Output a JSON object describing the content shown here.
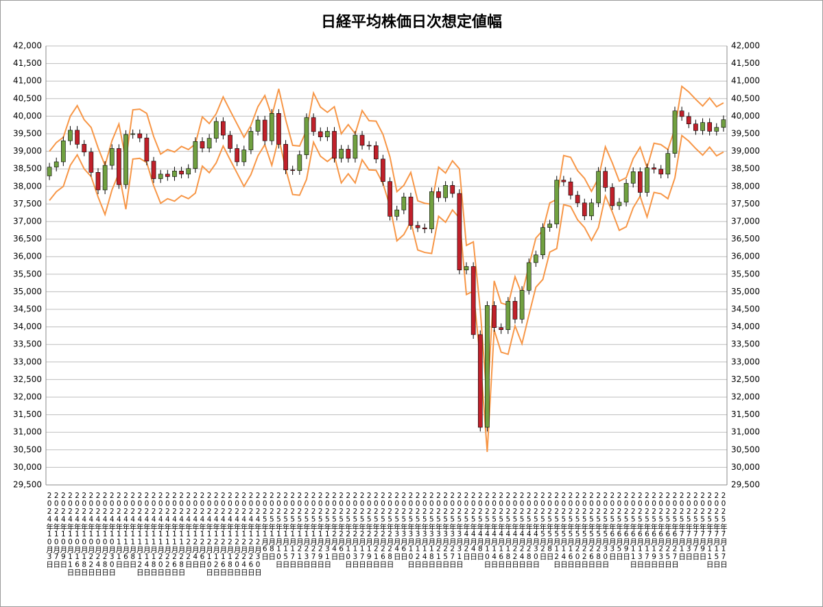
{
  "chart_data": {
    "type": "candlestick",
    "title": "日経平均株価日次想定値幅",
    "categories": [
      "2024年10月3日",
      "2024年10月7日",
      "2024年10月9日",
      "2024年10月11日",
      "2024年10月16日",
      "2024年10月18日",
      "2024年10月22日",
      "2024年10月24日",
      "2024年10月28日",
      "2024年10月30日",
      "2024年11月1日",
      "2024年11月6日",
      "2024年11月8日",
      "2024年11月12日",
      "2024年11月14日",
      "2024年11月18日",
      "2024年11月20日",
      "2024年11月22日",
      "2024年11月26日",
      "2024年11月28日",
      "2024年12月2日",
      "2024年12月4日",
      "2024年12月6日",
      "2024年12月10日",
      "2024年12月12日",
      "2024年12月16日",
      "2024年12月18日",
      "2024年12月20日",
      "2024年12月24日",
      "2024年12月26日",
      "2024年12月30日",
      "2025年1月6日",
      "2025年1月8日",
      "2025年1月10日",
      "2025年1月15日",
      "2025年1月17日",
      "2025年1月21日",
      "2025年1月23日",
      "2025年1月27日",
      "2025年1月29日",
      "2025年1月31日",
      "2025年2月4日",
      "2025年2月6日",
      "2025年2月10日",
      "2025年2月13日",
      "2025年2月17日",
      "2025年2月19日",
      "2025年2月21日",
      "2025年2月26日",
      "2025年2月28日",
      "2025年3月4日",
      "2025年3月6日",
      "2025年3月10日",
      "2025年3月12日",
      "2025年3月14日",
      "2025年3月18日",
      "2025年3月21日",
      "2025年3月25日",
      "2025年3月27日",
      "2025年3月31日",
      "2025年4月2日",
      "2025年4月4日",
      "2025年4月8日",
      "2025年4月10日",
      "2025年4月14日",
      "2025年4月16日",
      "2025年4月18日",
      "2025年4月22日",
      "2025年4月24日",
      "2025年4月28日",
      "2025年4月30日",
      "2025年5月2日",
      "2025年5月8日",
      "2025年5月12日",
      "2025年5月14日",
      "2025年5月16日",
      "2025年5月20日",
      "2025年5月22日",
      "2025年5月26日",
      "2025年5月28日",
      "2025年5月30日",
      "2025年6月3日",
      "2025年6月5日",
      "2025年6月9日",
      "2025年6月11日",
      "2025年6月13日",
      "2025年6月17日",
      "2025年6月19日",
      "2025年6月23日",
      "2025年6月25日",
      "2025年6月27日",
      "2025年7月1日",
      "2025年7月3日",
      "2025年7月7日",
      "2025年7月9日",
      "2025年7月11日",
      "2025年7月15日",
      "2025年7月17日"
    ],
    "open": [
      38300,
      38550,
      38700,
      39300,
      39600,
      39200,
      38980,
      38400,
      37900,
      38600,
      39080,
      38050,
      39480,
      39500,
      39380,
      38720,
      38220,
      38350,
      38280,
      38440,
      38350,
      38510,
      39280,
      39090,
      39370,
      39850,
      39460,
      39080,
      38700,
      39040,
      39570,
      39890,
      39300,
      40080,
      39200,
      38470,
      38450,
      38900,
      39960,
      39560,
      39410,
      39570,
      38800,
      39060,
      38800,
      39460,
      39170,
      39160,
      38780,
      38140,
      37150,
      37330,
      37700,
      36890,
      36820,
      36790,
      37850,
      37680,
      38030,
      37800,
      35620,
      35720,
      33780,
      31140,
      34610,
      33980,
      33920,
      34730,
      34220,
      35040,
      35830,
      36050,
      36830,
      36930,
      38180,
      38130,
      37750,
      37530,
      37160,
      37530,
      38430,
      37970,
      37450,
      37550,
      38090,
      38420,
      37830,
      38530,
      38490,
      38350,
      38940,
      40150,
      39990,
      39780,
      39590,
      39820,
      39570,
      39680
    ],
    "high": [
      38670,
      38820,
      39420,
      39720,
      39720,
      39320,
      39100,
      38520,
      38720,
      39200,
      39200,
      39600,
      39620,
      39620,
      39500,
      38840,
      38470,
      38470,
      38560,
      38560,
      38630,
      39400,
      39400,
      39490,
      39970,
      39970,
      39580,
      39200,
      39160,
      39690,
      40010,
      40010,
      40200,
      40200,
      39320,
      38590,
      39020,
      40080,
      40080,
      39680,
      39690,
      39690,
      39180,
      39180,
      39580,
      39580,
      39290,
      39280,
      38900,
      38260,
      37450,
      37820,
      37820,
      37010,
      36940,
      37970,
      37970,
      38150,
      38150,
      37920,
      35840,
      35840,
      33900,
      34730,
      34730,
      34100,
      34850,
      34850,
      35160,
      35950,
      36170,
      36950,
      37050,
      38300,
      38300,
      38250,
      37870,
      37650,
      37650,
      38550,
      38550,
      38090,
      37670,
      38210,
      38540,
      38540,
      38650,
      38650,
      38610,
      39060,
      40270,
      40270,
      40110,
      39900,
      39940,
      39940,
      39800,
      40020
    ],
    "low": [
      38180,
      38430,
      38580,
      39180,
      39080,
      38860,
      38280,
      37780,
      37780,
      38480,
      37930,
      37930,
      39360,
      39260,
      38600,
      38100,
      38100,
      38160,
      38160,
      38230,
      38230,
      38390,
      38970,
      38970,
      39250,
      39340,
      38960,
      38580,
      38580,
      38920,
      39450,
      39180,
      39180,
      39080,
      38350,
      38330,
      38330,
      38780,
      39440,
      39290,
      39290,
      38680,
      38680,
      38680,
      38680,
      39050,
      39040,
      38660,
      38020,
      37030,
      37030,
      37210,
      36770,
      36700,
      36670,
      36670,
      37560,
      37560,
      37680,
      35500,
      35500,
      33660,
      31020,
      31020,
      33860,
      33800,
      33800,
      34100,
      34100,
      34920,
      35710,
      35930,
      36710,
      36810,
      38010,
      37630,
      37410,
      37040,
      37040,
      37410,
      37850,
      37330,
      37330,
      37430,
      37970,
      37710,
      37710,
      38370,
      38230,
      38230,
      38820,
      39870,
      39660,
      39470,
      39470,
      39450,
      39450,
      39560
    ],
    "close": [
      38550,
      38700,
      39300,
      39600,
      39200,
      38980,
      38400,
      37900,
      38600,
      39080,
      38050,
      39480,
      39500,
      39380,
      38720,
      38220,
      38350,
      38280,
      38440,
      38350,
      38510,
      39280,
      39090,
      39370,
      39850,
      39460,
      39080,
      38700,
      39040,
      39570,
      39890,
      39300,
      40080,
      39200,
      38470,
      38450,
      38900,
      39960,
      39560,
      39410,
      39570,
      38800,
      39060,
      38800,
      39460,
      39170,
      39160,
      38780,
      38140,
      37150,
      37330,
      37700,
      36890,
      36820,
      36790,
      37850,
      37680,
      38030,
      37800,
      35620,
      35720,
      33780,
      31140,
      34610,
      33980,
      33920,
      34730,
      34220,
      35040,
      35830,
      36050,
      36830,
      36930,
      38180,
      38130,
      37750,
      37530,
      37160,
      37530,
      38430,
      37970,
      37450,
      37550,
      38090,
      38420,
      37830,
      38530,
      38490,
      38350,
      38940,
      40150,
      39990,
      39780,
      39590,
      39820,
      39570,
      39680,
      39900
    ],
    "up_color": "#70a040",
    "down_color": "#c0202a",
    "bands": [
      {
        "color": "#f79646",
        "values": [
          39000,
          39250,
          39400,
          40000,
          40300,
          39900,
          39680,
          39100,
          38600,
          39300,
          39780,
          38750,
          40180,
          40200,
          40080,
          39420,
          38920,
          39050,
          38980,
          39140,
          39050,
          39210,
          39980,
          39790,
          40070,
          40550,
          40160,
          39780,
          39400,
          39740,
          40270,
          40590,
          40000,
          40780,
          39900,
          39170,
          39150,
          39600,
          40660,
          40260,
          40110,
          40270,
          39500,
          39760,
          39500,
          40160,
          39870,
          39860,
          39480,
          38840,
          37850,
          38030,
          38400,
          37590,
          37520,
          37490,
          38550,
          38380,
          38730,
          38500,
          36320,
          36420,
          34480,
          31840,
          35310,
          34680,
          34620,
          35430,
          34920,
          35740,
          36530,
          36750,
          37530,
          37630,
          38880,
          38830,
          38450,
          38230,
          37860,
          38230,
          39130,
          38670,
          38150,
          38250,
          38790,
          39120,
          38530,
          39230,
          39190,
          39050,
          39640,
          40850,
          40690,
          40480,
          40290,
          40520,
          40270,
          40380
        ]
      },
      {
        "color": "#f79646",
        "values": [
          37600,
          37850,
          38000,
          38600,
          38900,
          38500,
          38280,
          37700,
          37200,
          37900,
          38380,
          37350,
          38780,
          38800,
          38680,
          38020,
          37520,
          37650,
          37580,
          37740,
          37650,
          37810,
          38580,
          38390,
          38670,
          39150,
          38760,
          38380,
          38000,
          38340,
          38870,
          39190,
          38600,
          39380,
          38500,
          37770,
          37750,
          38200,
          39260,
          38860,
          38710,
          38870,
          38100,
          38360,
          38100,
          38760,
          38470,
          38460,
          38080,
          37440,
          36450,
          36630,
          37000,
          36190,
          36120,
          36090,
          37150,
          36980,
          37330,
          37100,
          34920,
          35020,
          33080,
          30440,
          33910,
          33280,
          33220,
          34030,
          33520,
          34340,
          35130,
          35350,
          36130,
          36230,
          37480,
          37430,
          37050,
          36830,
          36460,
          36830,
          37730,
          37270,
          36750,
          36850,
          37390,
          37720,
          37130,
          37830,
          37790,
          37650,
          38240,
          39450,
          39290,
          39080,
          38890,
          39120,
          38870,
          38980
        ]
      }
    ],
    "ylim": [
      29500,
      42000
    ],
    "yticks": [
      {
        "value": 29500,
        "label": "29,500"
      },
      {
        "value": 30000,
        "label": "30,000"
      },
      {
        "value": 30500,
        "label": "30,500"
      },
      {
        "value": 31000,
        "label": "31,000"
      },
      {
        "value": 31500,
        "label": "31,500"
      },
      {
        "value": 32000,
        "label": "32,000"
      },
      {
        "value": 32500,
        "label": "32,500"
      },
      {
        "value": 33000,
        "label": "33,000"
      },
      {
        "value": 33500,
        "label": "33,500"
      },
      {
        "value": 34000,
        "label": "34,000"
      },
      {
        "value": 34500,
        "label": "34,500"
      },
      {
        "value": 35000,
        "label": "35,000"
      },
      {
        "value": 35500,
        "label": "35,500"
      },
      {
        "value": 36000,
        "label": "36,000"
      },
      {
        "value": 36500,
        "label": "36,500"
      },
      {
        "value": 37000,
        "label": "37,000"
      },
      {
        "value": 37500,
        "label": "37,500"
      },
      {
        "value": 38000,
        "label": "38,000"
      },
      {
        "value": 38500,
        "label": "38,500"
      },
      {
        "value": 39000,
        "label": "39,000"
      },
      {
        "value": 39500,
        "label": "39,500"
      },
      {
        "value": 40000,
        "label": "40,000"
      },
      {
        "value": 40500,
        "label": "40,500"
      },
      {
        "value": 41000,
        "label": "41,000"
      },
      {
        "value": 41500,
        "label": "41,500"
      },
      {
        "value": 42000,
        "label": "42,000"
      }
    ],
    "grid": true
  }
}
